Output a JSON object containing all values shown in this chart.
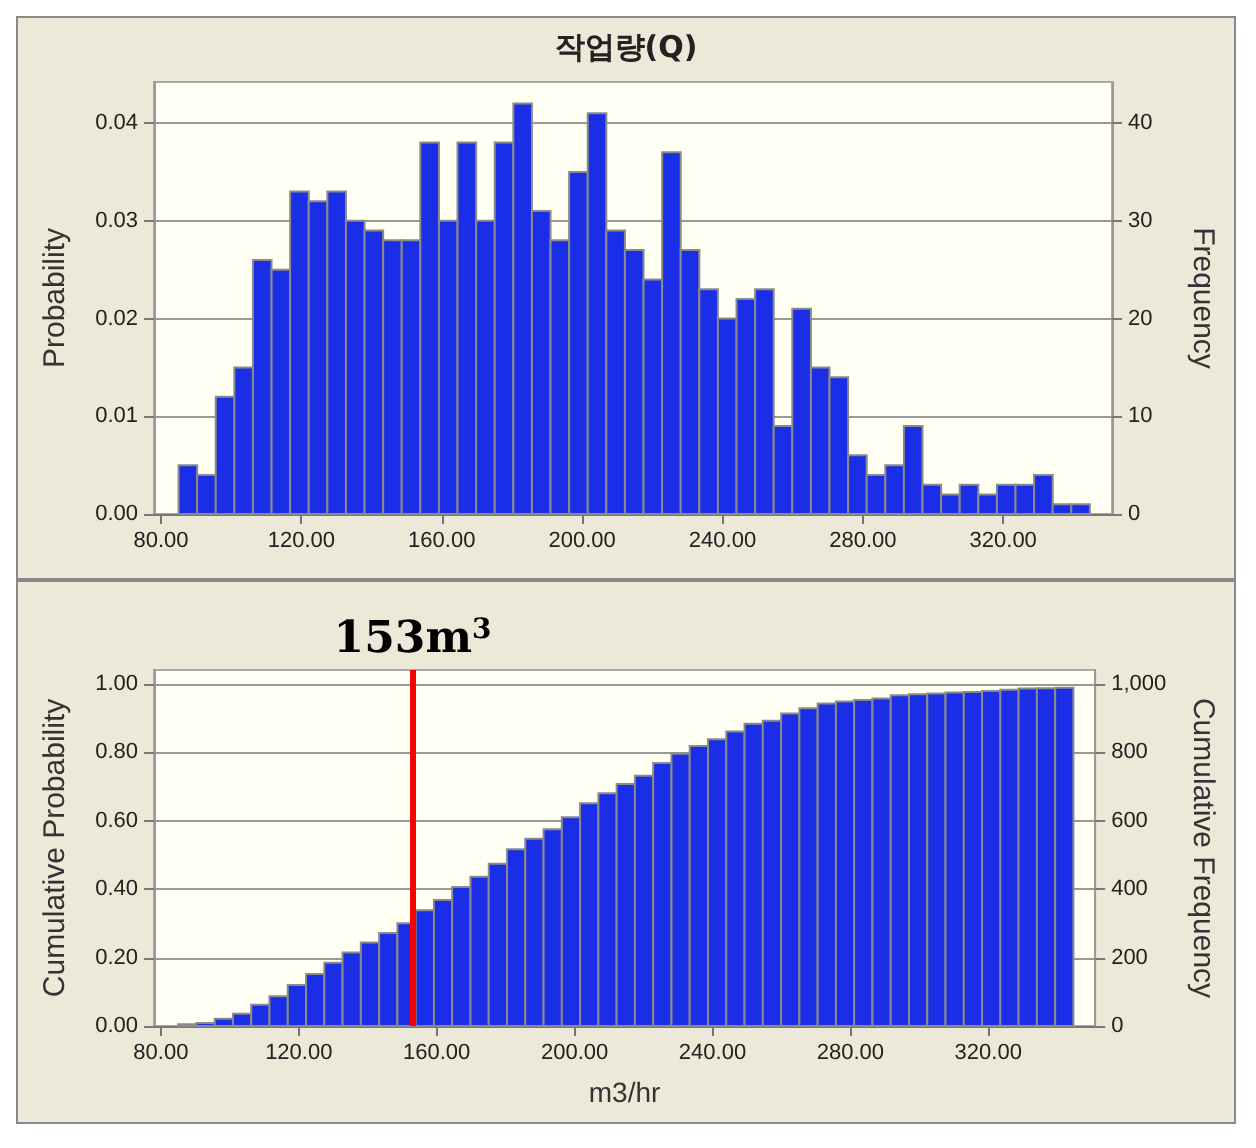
{
  "chart_data": [
    {
      "type": "histogram",
      "title": "작업량(Q)",
      "ylabel": "Probability",
      "y2label": "Frequency",
      "bins": [
        85,
        90.3,
        95.6,
        100.9,
        106.2,
        111.5,
        116.8,
        122.1,
        127.4,
        132.7,
        138,
        143.3,
        148.6,
        153.9,
        159.2,
        164.5,
        169.8,
        175.1,
        180.4,
        185.7,
        191,
        196.3,
        201.6,
        206.9,
        212.2,
        217.5,
        222.8,
        228.1,
        233.4,
        238.7,
        244,
        249.3,
        254.6,
        259.9,
        265.2,
        270.5,
        275.8,
        281.1,
        286.4,
        291.7,
        297,
        302.3,
        307.6,
        312.9,
        318.2,
        323.5,
        328.8,
        334.1,
        339.4,
        344.7
      ],
      "series": [
        {
          "axis": "y2",
          "color": "#1a2ee8",
          "values": [
            5,
            4,
            12,
            15,
            26,
            25,
            33,
            32,
            33,
            30,
            29,
            28,
            28,
            38,
            30,
            38,
            30,
            38,
            42,
            31,
            28,
            35,
            41,
            29,
            27,
            24,
            37,
            27,
            23,
            20,
            22,
            23,
            9,
            21,
            15,
            14,
            6,
            4,
            5,
            9,
            3,
            2,
            3,
            2,
            3,
            3,
            4,
            1,
            1
          ]
        }
      ],
      "xlim": [
        78,
        351
      ],
      "xticks": [
        {
          "value": 80,
          "label": "80.00"
        },
        {
          "value": 120,
          "label": "120.00"
        },
        {
          "value": 160,
          "label": "160.00"
        },
        {
          "value": 200,
          "label": "200.00"
        },
        {
          "value": 240,
          "label": "240.00"
        },
        {
          "value": 280,
          "label": "280.00"
        },
        {
          "value": 320,
          "label": "320.00"
        }
      ],
      "ylim": [
        0,
        0.0442
      ],
      "yticks": [
        {
          "value": 0,
          "label": "0.00"
        },
        0.01,
        0.02,
        0.03,
        0.04
      ],
      "y2lim": [
        0,
        44.2
      ],
      "y2ticks": [
        0,
        10,
        20,
        30,
        40
      ],
      "grid": "y"
    },
    {
      "type": "histogram",
      "xlabel": "m3/hr",
      "ylabel": "Cumulative Probability",
      "y2label": "Cumulative Frequency",
      "bins": [
        85,
        90.3,
        95.6,
        100.9,
        106.2,
        111.5,
        116.8,
        122.1,
        127.4,
        132.7,
        138,
        143.3,
        148.6,
        153.9,
        159.2,
        164.5,
        169.8,
        175.1,
        180.4,
        185.7,
        191,
        196.3,
        201.6,
        206.9,
        212.2,
        217.5,
        222.8,
        228.1,
        233.4,
        238.7,
        244,
        249.3,
        254.6,
        259.9,
        265.2,
        270.5,
        275.8,
        281.1,
        286.4,
        291.7,
        297,
        302.3,
        307.6,
        312.9,
        318.2,
        323.5,
        328.8,
        334.1,
        339.4,
        344.7
      ],
      "series": [
        {
          "axis": "y2",
          "color": "#1a2ee8",
          "values": [
            5,
            9,
            21,
            36,
            62,
            87,
            120,
            152,
            185,
            215,
            244,
            272,
            300,
            338,
            368,
            406,
            436,
            474,
            516,
            547,
            575,
            610,
            651,
            680,
            707,
            731,
            768,
            795,
            818,
            838,
            860,
            883,
            892,
            913,
            928,
            942,
            948,
            952,
            957,
            966,
            969,
            971,
            974,
            976,
            979,
            982,
            986,
            987,
            988
          ]
        }
      ],
      "xlim": [
        78,
        351
      ],
      "xticks": [
        {
          "value": 80,
          "label": "80.00"
        },
        {
          "value": 120,
          "label": "120.00"
        },
        {
          "value": 160,
          "label": "160.00"
        },
        {
          "value": 200,
          "label": "200.00"
        },
        {
          "value": 240,
          "label": "240.00"
        },
        {
          "value": 280,
          "label": "280.00"
        },
        {
          "value": 320,
          "label": "320.00"
        }
      ],
      "ylim": [
        0,
        1.04
      ],
      "yticks": [
        {
          "value": 0,
          "label": "0.00"
        },
        {
          "value": 0.2,
          "label": "0.20"
        },
        {
          "value": 0.4,
          "label": "0.40"
        },
        {
          "value": 0.6,
          "label": "0.60"
        },
        {
          "value": 0.8,
          "label": "0.80"
        },
        {
          "value": 1,
          "label": "1.00"
        }
      ],
      "y2lim": [
        0,
        1040
      ],
      "y2ticks": [
        0,
        200,
        400,
        600,
        800,
        {
          "value": 1000,
          "label": "1,000"
        }
      ],
      "grid": "y",
      "ref_lines": [
        {
          "axis": "x",
          "value": 153,
          "label": "153m$^{3}$",
          "color": "#ff0000"
        }
      ]
    }
  ]
}
